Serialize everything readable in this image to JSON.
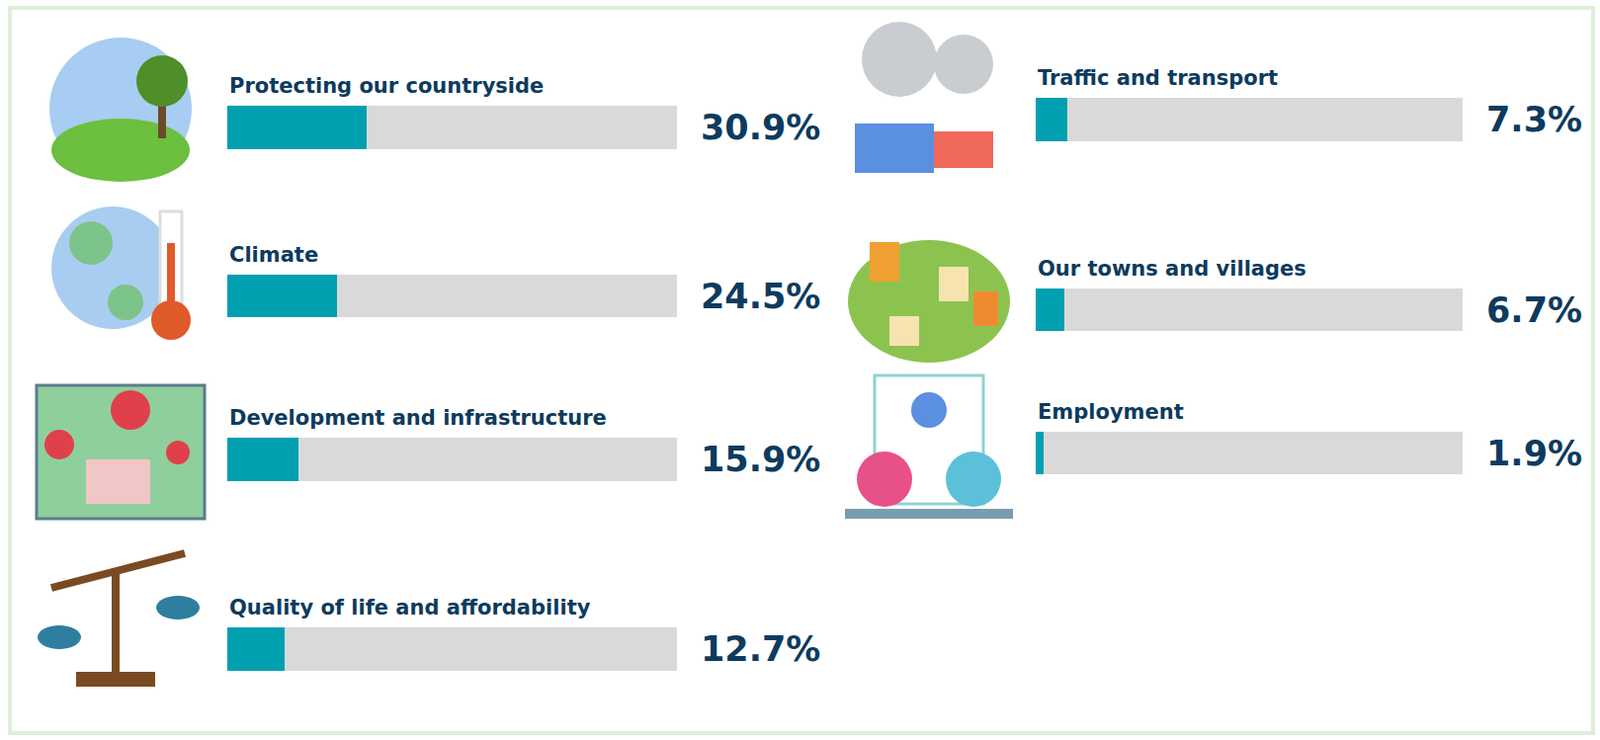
{
  "chart_data": {
    "type": "bar",
    "orientation": "horizontal",
    "categories": [
      "Protecting our countryside",
      "Climate",
      "Development and infrastructure",
      "Quality of life and affordability",
      "Traffic and transport",
      "Our towns and villages",
      "Employment"
    ],
    "values": [
      30.9,
      24.5,
      15.9,
      12.7,
      7.3,
      6.7,
      1.9
    ],
    "value_labels": [
      "30.9%",
      "24.5%",
      "15.9%",
      "12.7%",
      "7.3%",
      "6.7%",
      "1.9%"
    ],
    "xlim": [
      0,
      100
    ],
    "tick_labels": false,
    "data_labels": true,
    "grid": false,
    "color": "#00a0b0"
  }
}
